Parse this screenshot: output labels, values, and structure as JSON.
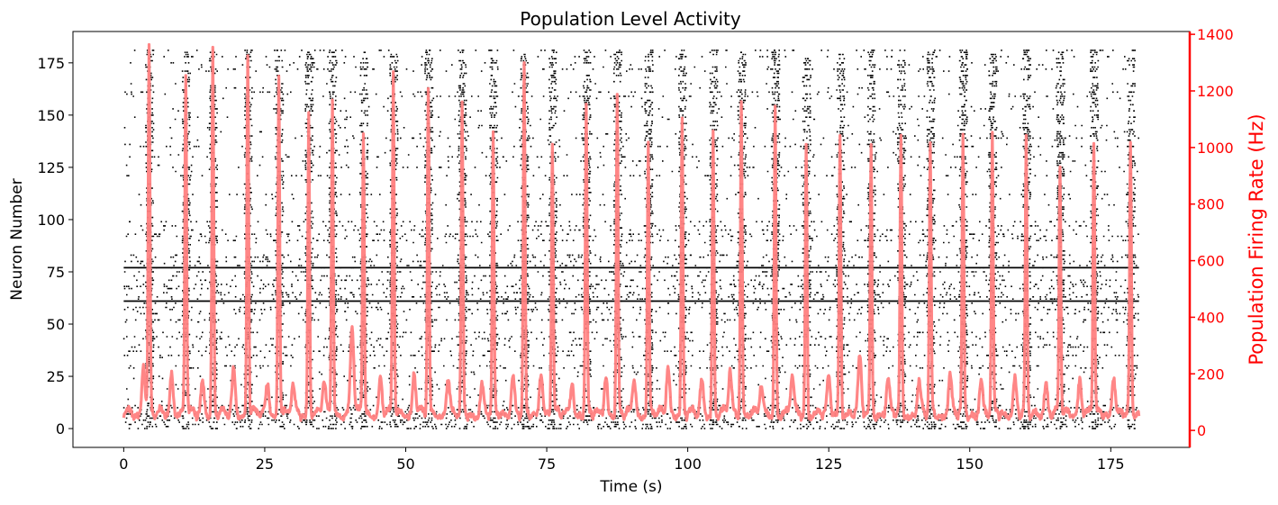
{
  "chart_data": {
    "type": "raster_with_line",
    "title": "Population Level Activity",
    "xlabel": "Time (s)",
    "ylabel_left": "Neuron Number",
    "ylabel_right": "Population Firing Rate (Hz)",
    "xlim": [
      -9,
      189
    ],
    "ylim_left": [
      -9,
      190
    ],
    "ylim_right": [
      -60,
      1410
    ],
    "x_ticks": [
      0,
      25,
      50,
      75,
      100,
      125,
      150,
      175
    ],
    "y_left_ticks": [
      0,
      25,
      50,
      75,
      100,
      125,
      150,
      175
    ],
    "y_right_ticks": [
      0,
      200,
      400,
      600,
      800,
      1000,
      1200,
      1400
    ],
    "grid": false,
    "neuron_count": 182,
    "duration_s": 180,
    "colors": {
      "raster": "#000000",
      "rate_line": "#ff7f7f",
      "right_axis": "#ff0000",
      "axes": "#000000"
    },
    "tonic_neurons": [
      61,
      77
    ],
    "bursts": [
      {
        "t": 4.5,
        "peak": 1340
      },
      {
        "t": 11.0,
        "peak": 1240
      },
      {
        "t": 15.8,
        "peak": 1330
      },
      {
        "t": 22.0,
        "peak": 1320
      },
      {
        "t": 27.5,
        "peak": 1250
      },
      {
        "t": 32.8,
        "peak": 1110
      },
      {
        "t": 37.0,
        "peak": 1160
      },
      {
        "t": 42.5,
        "peak": 1050
      },
      {
        "t": 47.8,
        "peak": 1240
      },
      {
        "t": 54.0,
        "peak": 1190
      },
      {
        "t": 60.0,
        "peak": 1120
      },
      {
        "t": 65.5,
        "peak": 1010
      },
      {
        "t": 71.0,
        "peak": 1270
      },
      {
        "t": 76.0,
        "peak": 1000
      },
      {
        "t": 82.0,
        "peak": 1120
      },
      {
        "t": 87.5,
        "peak": 1160
      },
      {
        "t": 93.0,
        "peak": 990
      },
      {
        "t": 99.0,
        "peak": 1070
      },
      {
        "t": 104.5,
        "peak": 1050
      },
      {
        "t": 109.5,
        "peak": 1150
      },
      {
        "t": 115.5,
        "peak": 1140
      },
      {
        "t": 121.0,
        "peak": 1000
      },
      {
        "t": 127.0,
        "peak": 1030
      },
      {
        "t": 132.5,
        "peak": 990
      },
      {
        "t": 137.8,
        "peak": 1020
      },
      {
        "t": 143.0,
        "peak": 990
      },
      {
        "t": 148.8,
        "peak": 1000
      },
      {
        "t": 154.0,
        "peak": 1010
      },
      {
        "t": 160.0,
        "peak": 1000
      },
      {
        "t": 166.0,
        "peak": 900
      },
      {
        "t": 172.0,
        "peak": 1010
      },
      {
        "t": 178.5,
        "peak": 990
      }
    ],
    "rate_baseline_hz": [
      20,
      80
    ],
    "minor_bumps": [
      {
        "t": 3.5,
        "peak": 180
      },
      {
        "t": 8.5,
        "peak": 150
      },
      {
        "t": 14.0,
        "peak": 120
      },
      {
        "t": 19.5,
        "peak": 160
      },
      {
        "t": 25.5,
        "peak": 110
      },
      {
        "t": 30.0,
        "peak": 100
      },
      {
        "t": 35.5,
        "peak": 110
      },
      {
        "t": 40.5,
        "peak": 320
      },
      {
        "t": 45.5,
        "peak": 130
      },
      {
        "t": 51.5,
        "peak": 150
      },
      {
        "t": 57.5,
        "peak": 130
      },
      {
        "t": 63.5,
        "peak": 100
      },
      {
        "t": 69.0,
        "peak": 140
      },
      {
        "t": 74.0,
        "peak": 160
      },
      {
        "t": 79.5,
        "peak": 120
      },
      {
        "t": 85.5,
        "peak": 140
      },
      {
        "t": 90.5,
        "peak": 130
      },
      {
        "t": 96.5,
        "peak": 170
      },
      {
        "t": 102.5,
        "peak": 120
      },
      {
        "t": 107.5,
        "peak": 150
      },
      {
        "t": 113.0,
        "peak": 100
      },
      {
        "t": 118.5,
        "peak": 140
      },
      {
        "t": 125.0,
        "peak": 120
      },
      {
        "t": 130.5,
        "peak": 190
      },
      {
        "t": 135.5,
        "peak": 120
      },
      {
        "t": 141.0,
        "peak": 110
      },
      {
        "t": 146.5,
        "peak": 140
      },
      {
        "t": 152.0,
        "peak": 130
      },
      {
        "t": 158.0,
        "peak": 130
      },
      {
        "t": 163.5,
        "peak": 120
      },
      {
        "t": 169.5,
        "peak": 130
      },
      {
        "t": 175.5,
        "peak": 140
      }
    ]
  }
}
